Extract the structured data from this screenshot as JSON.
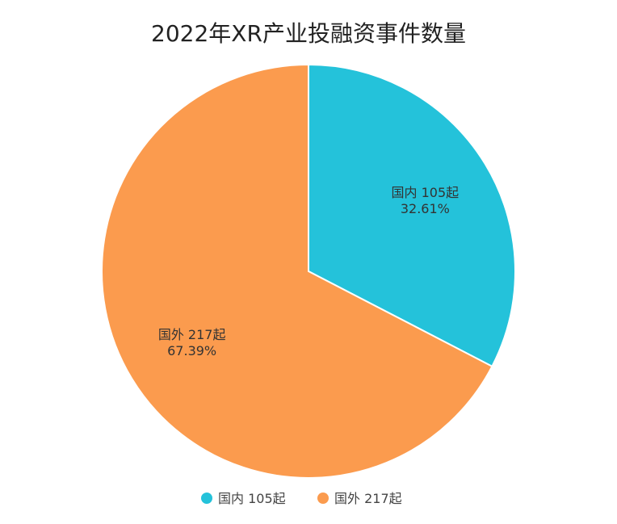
{
  "chart_data": {
    "type": "pie",
    "title": "2022年XR产业投融资事件数量",
    "slices": [
      {
        "name": "国内 105起",
        "value": 105,
        "percent_label": "32.61%",
        "color": "#24c2da"
      },
      {
        "name": "国外 217起",
        "value": 217,
        "percent_label": "67.39%",
        "color": "#fb9b4e"
      }
    ],
    "legend": {
      "placement": "bottom",
      "entries": [
        "国内 105起",
        "国外 217起"
      ]
    }
  }
}
